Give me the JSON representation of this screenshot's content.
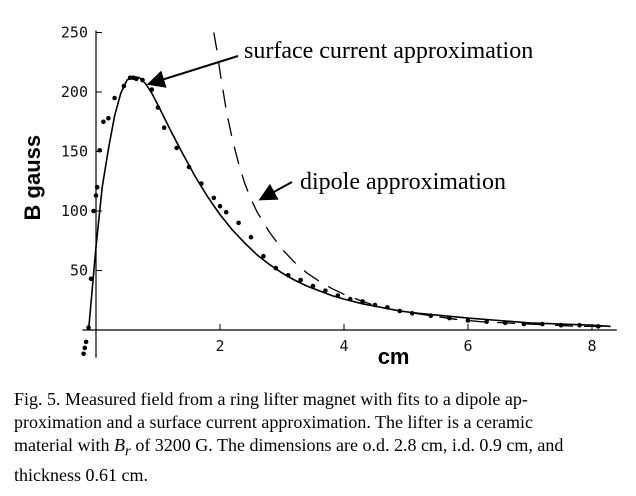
{
  "chart_data": {
    "type": "line",
    "xlabel": "cm",
    "ylabel": "B gauss",
    "xlim": [
      -0.4,
      8.4
    ],
    "ylim": [
      -20,
      250
    ],
    "x_ticks": [
      2,
      4,
      6,
      8
    ],
    "y_ticks": [
      50,
      100,
      150,
      200,
      250
    ],
    "grid": false,
    "annotations": [
      {
        "text": "surface current approximation",
        "points_to": [
          0.75,
          205
        ]
      },
      {
        "text": "dipole approximation",
        "points_to": [
          2.55,
          108
        ]
      }
    ],
    "series": [
      {
        "style": "points",
        "x": [
          -0.2,
          -0.18,
          -0.16,
          -0.12,
          -0.08,
          -0.04,
          0.0,
          0.02,
          0.06,
          0.12,
          0.2,
          0.3,
          0.45,
          0.55,
          0.6,
          0.65,
          0.75,
          0.9,
          1.0,
          1.1,
          1.3,
          1.5,
          1.7,
          1.9,
          2.0,
          2.1,
          2.3,
          2.5,
          2.7,
          2.9,
          3.1,
          3.3,
          3.5,
          3.7,
          3.9,
          4.1,
          4.3,
          4.5,
          4.7,
          4.9,
          5.1,
          5.4,
          5.7,
          6.0,
          6.3,
          6.6,
          6.9,
          7.2,
          7.5,
          7.8,
          8.1
        ],
        "y": [
          -20,
          -15,
          -10,
          2,
          43,
          100,
          113,
          120,
          151,
          175,
          178,
          195,
          205,
          212,
          212,
          211,
          210,
          202,
          187,
          170,
          153,
          137,
          123,
          111,
          104,
          99,
          90,
          78,
          62,
          52,
          46,
          42,
          37,
          33,
          29,
          26,
          24,
          21,
          19,
          16,
          14,
          12,
          10,
          8,
          7,
          6,
          5,
          5,
          4,
          4,
          3
        ]
      },
      {
        "style": "solid",
        "x": [
          -0.12,
          0.0,
          0.1,
          0.2,
          0.3,
          0.4,
          0.5,
          0.6,
          0.7,
          0.8,
          0.9,
          1.0,
          1.2,
          1.4,
          1.6,
          1.8,
          2.0,
          2.2,
          2.4,
          2.6,
          2.8,
          3.0,
          3.2,
          3.4,
          3.6,
          3.8,
          4.0,
          4.3,
          4.6,
          4.9,
          5.2,
          5.6,
          6.0,
          6.5,
          7.0,
          7.5,
          8.0,
          8.3
        ],
        "y": [
          0,
          70,
          120,
          152,
          180,
          199,
          210,
          213,
          212,
          207,
          199,
          189,
          168,
          148,
          129,
          112,
          97,
          84,
          73,
          63,
          55,
          48,
          42,
          37,
          33,
          29,
          26,
          22,
          19,
          16,
          14,
          12,
          10,
          8,
          6,
          5,
          4,
          3
        ]
      },
      {
        "style": "dashed",
        "x": [
          1.9,
          1.95,
          2.0,
          2.1,
          2.2,
          2.3,
          2.4,
          2.5,
          2.6,
          2.8,
          3.0,
          3.2,
          3.4,
          3.6,
          3.8,
          4.0,
          4.3,
          4.6,
          5.0,
          5.4,
          5.8,
          6.2,
          6.6,
          7.0,
          7.4,
          7.8,
          8.2
        ],
        "y": [
          250,
          235,
          217,
          185,
          160,
          140,
          123,
          110,
          99,
          82,
          68,
          57,
          48,
          41,
          35,
          30,
          24,
          19,
          15,
          12,
          9,
          7,
          6,
          5,
          4,
          3,
          3
        ]
      }
    ]
  },
  "caption": {
    "lines": [
      "Fig. 5. Measured field from a ring lifter magnet with fits to a dipole ap-",
      "proximation and a surface current approximation. The lifter is a ceramic",
      "material with B_r of 3200 G. The dimensions are o.d. 2.8 cm, i.d. 0.9 cm, and",
      "thickness 0.61 cm."
    ],
    "line1": "Fig. 5. Measured field from a ring lifter magnet with fits to a dipole ap-",
    "line2": "proximation and a surface current approximation. The lifter is a ceramic",
    "line3_before": "material with ",
    "line3_symbol": "B",
    "line3_subscript": "r",
    "line3_after": " of 3200 G. The dimensions are o.d. 2.8 cm, i.d. 0.9 cm, and",
    "line4": "thickness 0.61 cm."
  }
}
